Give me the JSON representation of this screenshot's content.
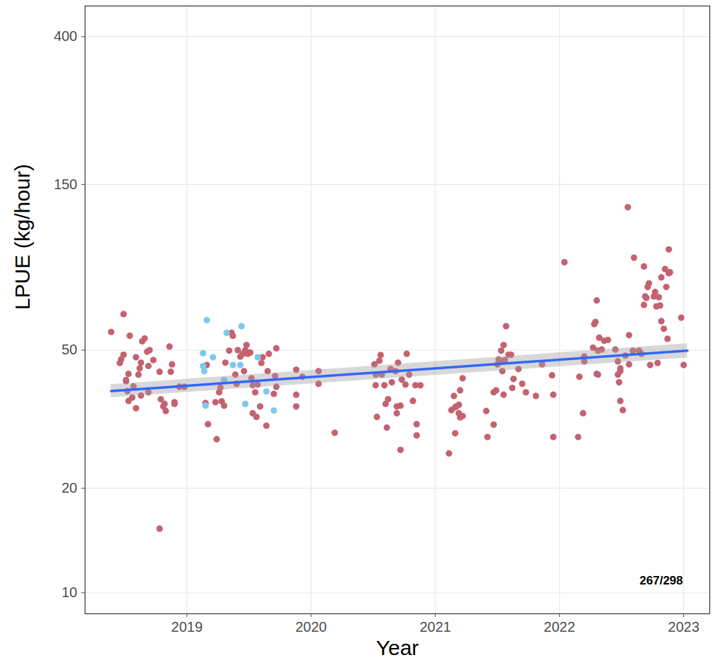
{
  "chart_data": {
    "type": "scatter",
    "x_label": "Year",
    "y_label": "LPUE (kg/hour)",
    "log": "y",
    "grid": true,
    "xlim": [
      2018.18,
      2023.21
    ],
    "xticks": [
      2019,
      2020,
      2021,
      2022,
      2023
    ],
    "ylim": [
      8.7,
      490
    ],
    "yticks": [
      10,
      20,
      50,
      150,
      400
    ],
    "annotations": [
      {
        "text": "267/298"
      }
    ],
    "series": [
      {
        "type": "scatter",
        "color": "#c46270",
        "marker": "circle",
        "x": [
          2018.39,
          2018.46,
          2018.47,
          2018.49,
          2018.49,
          2018.51,
          2018.51,
          2018.52,
          2018.53,
          2018.53,
          2018.54,
          2018.57,
          2018.56,
          2018.59,
          2018.59,
          2018.62,
          2018.63,
          2018.61,
          2018.63,
          2018.64,
          2018.66,
          2018.68,
          2018.69,
          2018.7,
          2018.69,
          2018.73,
          2018.78,
          2018.78,
          2018.79,
          2018.81,
          2018.83,
          2018.82,
          2018.86,
          2018.87,
          2018.88,
          2018.9,
          2018.9,
          2018.94,
          2018.98,
          2019.16,
          2019.17,
          2019.15,
          2019.24,
          2019.23,
          2019.26,
          2019.27,
          2019.28,
          2019.3,
          2019.31,
          2019.34,
          2019.36,
          2019.37,
          2019.39,
          2019.4,
          2019.41,
          2019.43,
          2019.45,
          2019.46,
          2019.47,
          2019.48,
          2019.49,
          2019.51,
          2019.52,
          2019.53,
          2019.53,
          2019.55,
          2019.56,
          2019.57,
          2019.59,
          2019.6,
          2019.61,
          2019.64,
          2019.65,
          2019.66,
          2019.7,
          2019.71,
          2019.72,
          2019.72,
          2019.88,
          2019.88,
          2019.88,
          2019.93,
          2020.06,
          2020.06,
          2020.19,
          2020.51,
          2020.52,
          2020.52,
          2020.53,
          2020.55,
          2020.56,
          2020.57,
          2020.59,
          2020.6,
          2020.61,
          2020.62,
          2020.64,
          2020.65,
          2020.68,
          2020.69,
          2020.69,
          2020.7,
          2020.72,
          2020.72,
          2020.73,
          2020.76,
          2020.77,
          2020.79,
          2020.82,
          2020.84,
          2020.85,
          2020.85,
          2020.88,
          2021.11,
          2021.13,
          2021.15,
          2021.16,
          2021.17,
          2021.19,
          2021.19,
          2021.2,
          2021.2,
          2021.22,
          2021.22,
          2021.16,
          2021.41,
          2021.42,
          2021.47,
          2021.49,
          2021.47,
          2021.5,
          2021.51,
          2021.53,
          2021.54,
          2021.54,
          2021.55,
          2021.55,
          2021.56,
          2021.57,
          2021.59,
          2021.61,
          2021.62,
          2021.63,
          2021.67,
          2021.7,
          2021.73,
          2021.81,
          2021.86,
          2021.94,
          2021.95,
          2021.95,
          2022.04,
          2022.15,
          2022.16,
          2022.19,
          2022.2,
          2022.2,
          2022.27,
          2022.28,
          2022.29,
          2022.3,
          2022.3,
          2022.31,
          2022.31,
          2022.32,
          2022.34,
          2022.36,
          2022.39,
          2022.45,
          2022.47,
          2022.47,
          2022.48,
          2022.49,
          2022.49,
          2022.49,
          2022.51,
          2022.53,
          2022.55,
          2022.56,
          2022.56,
          2022.59,
          2022.6,
          2022.64,
          2022.66,
          2022.68,
          2022.68,
          2022.69,
          2022.7,
          2022.71,
          2022.72,
          2022.73,
          2022.76,
          2022.77,
          2022.78,
          2022.79,
          2022.8,
          2022.81,
          2022.82,
          2022.82,
          2022.84,
          2022.85,
          2022.86,
          2022.87,
          2022.88,
          2022.88,
          2022.89,
          2022.98,
          2023.0
        ],
        "values": [
          56.4,
          45.9,
          47.0,
          63.5,
          48.5,
          41.0,
          40.7,
          38.1,
          35.7,
          42.7,
          55.0,
          39.3,
          36.5,
          34.0,
          47.7,
          44.3,
          46.0,
          42.5,
          37.0,
          53.0,
          54.0,
          49.5,
          45.0,
          50.0,
          37.8,
          46.8,
          15.3,
          43.3,
          36.1,
          34.4,
          33.4,
          35.0,
          51.2,
          43.3,
          45.5,
          35.0,
          35.4,
          39.2,
          39.2,
          45.3,
          30.6,
          35.2,
          27.7,
          35.4,
          37.8,
          39.0,
          35.6,
          34.6,
          46.0,
          49.8,
          56.1,
          55.0,
          42.5,
          40.0,
          50.0,
          47.9,
          48.8,
          43.5,
          50.0,
          51.7,
          48.8,
          49.2,
          41.5,
          39.6,
          32.9,
          37.8,
          32.1,
          39.8,
          34.4,
          45.9,
          47.7,
          30.3,
          43.5,
          48.8,
          37.4,
          42.1,
          39.2,
          50.6,
          43.9,
          37.2,
          34.4,
          41.9,
          43.5,
          40.0,
          28.9,
          45.5,
          42.5,
          39.6,
          32.1,
          46.6,
          48.4,
          42.5,
          39.6,
          35.0,
          29.9,
          36.1,
          44.1,
          40.4,
          43.5,
          34.4,
          32.9,
          46.0,
          34.6,
          25.8,
          41.1,
          39.8,
          48.8,
          42.5,
          35.7,
          39.6,
          30.6,
          28.4,
          39.6,
          25.2,
          33.6,
          36.9,
          34.2,
          34.4,
          32.9,
          34.8,
          32.0,
          38.3,
          41.5,
          32.3,
          28.8,
          33.4,
          28.1,
          37.8,
          38.3,
          30.5,
          45.5,
          47.0,
          49.8,
          43.5,
          46.4,
          37.2,
          51.7,
          46.8,
          58.6,
          48.5,
          48.5,
          38.9,
          41.3,
          44.1,
          40.0,
          37.8,
          36.9,
          45.5,
          42.3,
          37.2,
          28.1,
          89.6,
          28.1,
          41.9,
          32.9,
          47.9,
          46.4,
          50.8,
          59.4,
          60.3,
          42.7,
          69.5,
          42.5,
          49.8,
          54.3,
          50.2,
          53.2,
          53.5,
          50.2,
          42.5,
          46.4,
          40.4,
          43.5,
          44.3,
          35.7,
          33.6,
          48.2,
          129,
          55.2,
          45.5,
          49.8,
          92.3,
          49.8,
          48.8,
          67.5,
          87.1,
          71.4,
          70.7,
          76.0,
          77.8,
          45.3,
          71.4,
          73.5,
          66.8,
          45.9,
          71.0,
          67.2,
          81.0,
          60.6,
          57.6,
          85.6,
          76.0,
          53.9,
          97.5,
          83.3,
          83.8,
          62.0,
          45.3
        ]
      },
      {
        "type": "scatter",
        "color": "#7ec8ec",
        "marker": "circle",
        "x": [
          2019.16,
          2019.13,
          2019.13,
          2019.14,
          2019.15,
          2019.21,
          2019.32,
          2019.37,
          2019.43,
          2019.44,
          2019.47,
          2019.57,
          2019.7,
          2019.64,
          2019.3
        ],
        "values": [
          61.0,
          49.0,
          45.0,
          43.5,
          34.6,
          47.7,
          56.1,
          45.3,
          45.3,
          58.6,
          35.0,
          47.7,
          33.5,
          38.0,
          41.0
        ]
      },
      {
        "type": "line",
        "color": "#3366ff",
        "line_style": "solid",
        "x": [
          2018.39,
          2023.03
        ],
        "values": [
          38.1,
          49.8
        ],
        "lower": [
          36.5,
          47.5
        ],
        "upper": [
          39.8,
          52.2
        ]
      }
    ]
  }
}
